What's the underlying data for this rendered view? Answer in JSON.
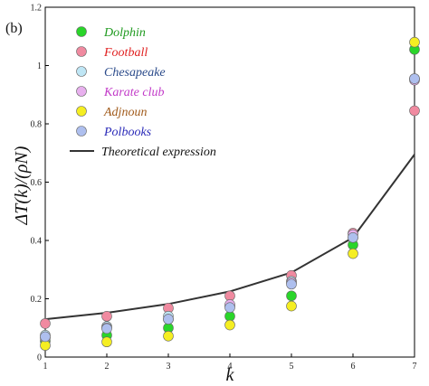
{
  "chart_data": {
    "type": "scatter",
    "panel_label": "(b)",
    "xlabel": "k",
    "ylabel": "ΔT(k)/(ρN)",
    "xlim": [
      1,
      7
    ],
    "ylim": [
      0,
      1.2
    ],
    "xticks": [
      1,
      2,
      3,
      4,
      5,
      6,
      7
    ],
    "yticks": [
      0,
      0.2,
      0.4,
      0.6,
      0.8,
      1,
      1.2
    ],
    "xtick_labels": [
      "1",
      "2",
      "3",
      "4",
      "5",
      "6",
      "7"
    ],
    "ytick_labels": [
      "0",
      "0.2",
      "0.4",
      "0.6",
      "0.8",
      "1",
      "1.2"
    ],
    "legend_position": "top-left",
    "grid": false,
    "series": [
      {
        "name": "Dolphin",
        "color": "#2ad52a",
        "text_color": "#1f9a1f",
        "x": [
          1,
          2,
          3,
          4,
          5,
          6,
          7
        ],
        "y": [
          0.055,
          0.075,
          0.1,
          0.14,
          0.21,
          0.385,
          1.055
        ]
      },
      {
        "name": "Football",
        "color": "#f08aa0",
        "text_color": "#e02020",
        "x": [
          1,
          2,
          3,
          4,
          5,
          6,
          7
        ],
        "y": [
          0.115,
          0.14,
          0.168,
          0.21,
          0.28,
          0.425,
          0.845
        ]
      },
      {
        "name": "Chesapeake",
        "color": "#bfe6f5",
        "text_color": "#2a4a8a",
        "x": [
          1,
          2,
          3,
          4,
          5,
          6,
          7
        ],
        "y": [
          0.075,
          0.105,
          0.14,
          0.175,
          0.26,
          0.41,
          0.955
        ]
      },
      {
        "name": "Karate club",
        "color": "#e8b0ee",
        "text_color": "#c23ac8",
        "x": [
          1,
          2,
          3,
          4,
          5,
          6,
          7
        ],
        "y": [
          0.065,
          0.1,
          0.13,
          0.18,
          0.255,
          0.42,
          0.95
        ]
      },
      {
        "name": "Adjnoun",
        "color": "#f5ee22",
        "text_color": "#a05a1a",
        "x": [
          1,
          2,
          3,
          4,
          5,
          6,
          7
        ],
        "y": [
          0.04,
          0.052,
          0.072,
          0.11,
          0.175,
          0.355,
          1.08
        ]
      },
      {
        "name": "Polbooks",
        "color": "#aebfee",
        "text_color": "#2a2ab8",
        "x": [
          1,
          2,
          3,
          4,
          5,
          6,
          7
        ],
        "y": [
          0.07,
          0.098,
          0.13,
          0.17,
          0.25,
          0.41,
          0.955
        ]
      }
    ],
    "theory": {
      "name": "Theoretical expression",
      "color": "#333333",
      "x": [
        1,
        2,
        3,
        4,
        5,
        6,
        7
      ],
      "y": [
        0.13,
        0.152,
        0.182,
        0.225,
        0.29,
        0.41,
        0.695
      ]
    }
  }
}
